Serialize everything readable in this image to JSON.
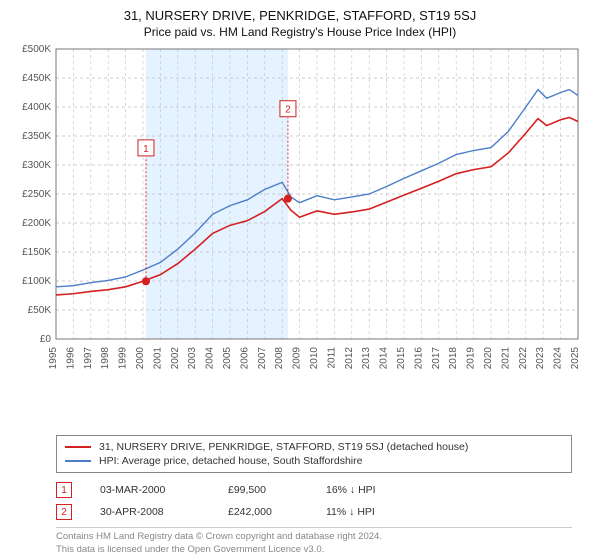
{
  "title": "31, NURSERY DRIVE, PENKRIDGE, STAFFORD, ST19 5SJ",
  "subtitle": "Price paid vs. HM Land Registry's House Price Index (HPI)",
  "chart": {
    "type": "line",
    "background_color": "#ffffff",
    "plot_border_color": "#777777",
    "grid_color": "#bfbfbf",
    "grid_dash": "3,3",
    "highlight_band": {
      "x_start": 2000.17,
      "x_end": 2008.33,
      "fill": "#cfe8ff",
      "opacity": 0.55
    },
    "xlim": [
      1995,
      2025
    ],
    "ylim": [
      0,
      500000
    ],
    "ytick_step": 50000,
    "ytick_labels": [
      "£0",
      "£50K",
      "£100K",
      "£150K",
      "£200K",
      "£250K",
      "£300K",
      "£350K",
      "£400K",
      "£450K",
      "£500K"
    ],
    "xtick_step": 1,
    "xtick_labels": [
      "1995",
      "1996",
      "1997",
      "1998",
      "1999",
      "2000",
      "2001",
      "2002",
      "2003",
      "2004",
      "2005",
      "2006",
      "2007",
      "2008",
      "2009",
      "2010",
      "2011",
      "2012",
      "2013",
      "2014",
      "2015",
      "2016",
      "2017",
      "2018",
      "2019",
      "2020",
      "2021",
      "2022",
      "2023",
      "2024",
      "2025"
    ],
    "xtick_rotate": -90,
    "axis_font_size": 10,
    "axis_color": "#555555",
    "series": [
      {
        "name": "hpi",
        "label": "HPI: Average price, detached house, South Staffordshire",
        "color": "#4a7ec8",
        "line_width": 1.4,
        "data": [
          [
            1995,
            90000
          ],
          [
            1996,
            92000
          ],
          [
            1997,
            97000
          ],
          [
            1998,
            101000
          ],
          [
            1999,
            107000
          ],
          [
            2000,
            119000
          ],
          [
            2001,
            132000
          ],
          [
            2002,
            155000
          ],
          [
            2003,
            183000
          ],
          [
            2004,
            215000
          ],
          [
            2005,
            230000
          ],
          [
            2006,
            240000
          ],
          [
            2007,
            258000
          ],
          [
            2008,
            270000
          ],
          [
            2008.5,
            245000
          ],
          [
            2009,
            235000
          ],
          [
            2010,
            247000
          ],
          [
            2011,
            240000
          ],
          [
            2012,
            245000
          ],
          [
            2013,
            250000
          ],
          [
            2014,
            263000
          ],
          [
            2015,
            277000
          ],
          [
            2016,
            290000
          ],
          [
            2017,
            303000
          ],
          [
            2018,
            318000
          ],
          [
            2019,
            325000
          ],
          [
            2020,
            330000
          ],
          [
            2021,
            358000
          ],
          [
            2022,
            400000
          ],
          [
            2022.7,
            430000
          ],
          [
            2023.2,
            415000
          ],
          [
            2024,
            425000
          ],
          [
            2024.5,
            430000
          ],
          [
            2025,
            420000
          ]
        ]
      },
      {
        "name": "price_paid",
        "label": "31, NURSERY DRIVE, PENKRIDGE, STAFFORD, ST19 5SJ (detached house)",
        "color": "#d42020",
        "line_width": 1.6,
        "data": [
          [
            1995,
            76000
          ],
          [
            1996,
            78000
          ],
          [
            1997,
            82000
          ],
          [
            1998,
            85000
          ],
          [
            1999,
            90000
          ],
          [
            2000,
            99500
          ],
          [
            2001,
            111000
          ],
          [
            2002,
            130000
          ],
          [
            2003,
            155000
          ],
          [
            2004,
            182000
          ],
          [
            2005,
            196000
          ],
          [
            2006,
            204000
          ],
          [
            2007,
            220000
          ],
          [
            2008,
            242000
          ],
          [
            2008.5,
            222000
          ],
          [
            2009,
            210000
          ],
          [
            2010,
            221000
          ],
          [
            2011,
            215000
          ],
          [
            2012,
            219000
          ],
          [
            2013,
            224000
          ],
          [
            2014,
            236000
          ],
          [
            2015,
            248000
          ],
          [
            2016,
            260000
          ],
          [
            2017,
            272000
          ],
          [
            2018,
            285000
          ],
          [
            2019,
            292000
          ],
          [
            2020,
            297000
          ],
          [
            2021,
            321000
          ],
          [
            2022,
            355000
          ],
          [
            2022.7,
            380000
          ],
          [
            2023.2,
            368000
          ],
          [
            2024,
            378000
          ],
          [
            2024.5,
            382000
          ],
          [
            2025,
            375000
          ]
        ]
      }
    ],
    "markers": [
      {
        "n": "1",
        "x": 2000.17,
        "y": 99500,
        "dot_color": "#d42020",
        "box_border": "#d42020",
        "box_bg": "#ffffff",
        "label_y_offset": -230000
      },
      {
        "n": "2",
        "x": 2008.33,
        "y": 242000,
        "dot_color": "#d42020",
        "box_border": "#d42020",
        "box_bg": "#ffffff",
        "label_y_offset": -155000
      }
    ]
  },
  "legend": {
    "items": [
      {
        "color": "#d42020",
        "label": "31, NURSERY DRIVE, PENKRIDGE, STAFFORD, ST19 5SJ (detached house)"
      },
      {
        "color": "#4a7ec8",
        "label": "HPI: Average price, detached house, South Staffordshire"
      }
    ]
  },
  "events": [
    {
      "n": "1",
      "date": "03-MAR-2000",
      "price": "£99,500",
      "hpi": "16% ↓ HPI"
    },
    {
      "n": "2",
      "date": "30-APR-2008",
      "price": "£242,000",
      "hpi": "11% ↓ HPI"
    }
  ],
  "footer": {
    "line1": "Contains HM Land Registry data © Crown copyright and database right 2024.",
    "line2": "This data is licensed under the Open Government Licence v3.0."
  }
}
